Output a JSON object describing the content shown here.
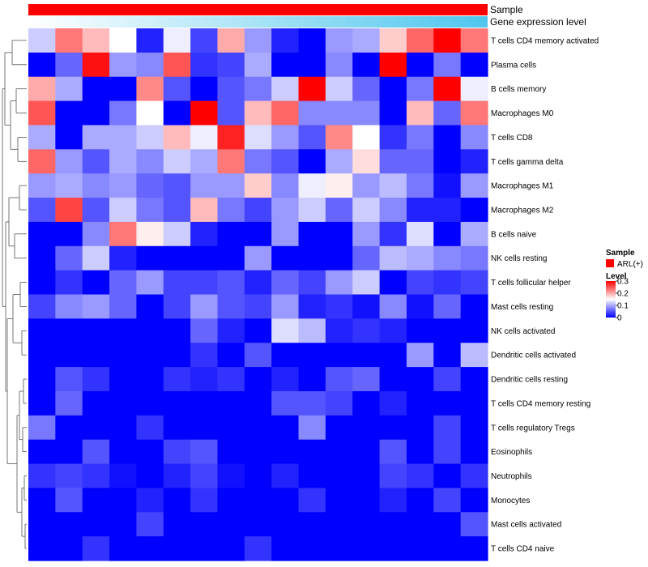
{
  "chart_data": {
    "type": "heatmap",
    "annotation_rows": [
      {
        "label": "Sample",
        "colors": [
          "#ff0000"
        ]
      },
      {
        "label": "Gene expression level",
        "colors": [
          "#ffffff",
          "#4fc6ee"
        ]
      }
    ],
    "rows": [
      "T cells CD4 memory activated",
      "Plasma cells",
      "B cells memory",
      "Macrophages M0",
      "T cells CD8",
      "T cells gamma delta",
      "Macrophages M1",
      "Macrophages M2",
      "B cells naive",
      "NK cells resting",
      "T cells follicular helper",
      "Mast cells resting",
      "NK cells activated",
      "Dendritic cells activated",
      "Dendritic cells resting",
      "T cells CD4 memory resting",
      "T cells regulatory  Tregs",
      "Eosinophils",
      "Neutrophils",
      "Monocytes",
      "Mast cells activated",
      "T cells CD4 naive"
    ],
    "values": [
      [
        0.12,
        0.23,
        0.19,
        0.15,
        0.02,
        0.14,
        0.04,
        0.2,
        0.09,
        0.02,
        0.0,
        0.09,
        0.1,
        0.18,
        0.24,
        0.3,
        0.23
      ],
      [
        0.0,
        0.06,
        0.29,
        0.09,
        0.08,
        0.25,
        0.03,
        0.04,
        0.1,
        0.0,
        0.0,
        0.08,
        0.0,
        0.3,
        0.0,
        0.07,
        0.0
      ],
      [
        0.2,
        0.1,
        0.0,
        0.0,
        0.22,
        0.05,
        0.0,
        0.05,
        0.07,
        0.12,
        0.3,
        0.12,
        0.06,
        0.0,
        0.07,
        0.3,
        0.14
      ],
      [
        0.25,
        0.0,
        0.0,
        0.07,
        0.15,
        0.0,
        0.3,
        0.05,
        0.19,
        0.24,
        0.08,
        0.08,
        0.08,
        0.0,
        0.19,
        0.06,
        0.23
      ],
      [
        0.1,
        0.0,
        0.1,
        0.1,
        0.12,
        0.19,
        0.14,
        0.28,
        0.13,
        0.09,
        0.05,
        0.22,
        0.15,
        0.03,
        0.07,
        0.0,
        0.08
      ],
      [
        0.24,
        0.09,
        0.05,
        0.1,
        0.08,
        0.12,
        0.1,
        0.23,
        0.07,
        0.05,
        0.0,
        0.1,
        0.17,
        0.06,
        0.06,
        0.0,
        0.02
      ],
      [
        0.09,
        0.1,
        0.08,
        0.09,
        0.06,
        0.05,
        0.09,
        0.09,
        0.18,
        0.08,
        0.14,
        0.16,
        0.09,
        0.11,
        0.07,
        0.01,
        0.09
      ],
      [
        0.05,
        0.26,
        0.05,
        0.12,
        0.07,
        0.05,
        0.19,
        0.07,
        0.04,
        0.09,
        0.12,
        0.06,
        0.12,
        0.08,
        0.02,
        0.02,
        0.0
      ],
      [
        0.0,
        0.0,
        0.08,
        0.23,
        0.16,
        0.12,
        0.02,
        0.0,
        0.0,
        0.09,
        0.0,
        0.0,
        0.09,
        0.03,
        0.13,
        0.0,
        0.1
      ],
      [
        0.0,
        0.06,
        0.12,
        0.02,
        0.0,
        0.0,
        0.0,
        0.0,
        0.09,
        0.0,
        0.0,
        0.0,
        0.06,
        0.11,
        0.1,
        0.08,
        0.07
      ],
      [
        0.0,
        0.03,
        0.0,
        0.06,
        0.09,
        0.04,
        0.04,
        0.05,
        0.02,
        0.06,
        0.04,
        0.09,
        0.12,
        0.0,
        0.04,
        0.03,
        0.04
      ],
      [
        0.04,
        0.08,
        0.09,
        0.06,
        0.0,
        0.04,
        0.09,
        0.05,
        0.04,
        0.09,
        0.02,
        0.03,
        0.01,
        0.08,
        0.01,
        0.06,
        0.0
      ],
      [
        0.0,
        0.0,
        0.0,
        0.0,
        0.0,
        0.0,
        0.06,
        0.02,
        0.0,
        0.13,
        0.11,
        0.02,
        0.03,
        0.02,
        0.0,
        0.0,
        0.0
      ],
      [
        0.0,
        0.0,
        0.0,
        0.0,
        0.0,
        0.0,
        0.03,
        0.0,
        0.05,
        0.0,
        0.0,
        0.0,
        0.0,
        0.0,
        0.09,
        0.0,
        0.11
      ],
      [
        0.0,
        0.05,
        0.03,
        0.0,
        0.0,
        0.03,
        0.02,
        0.03,
        0.0,
        0.02,
        0.0,
        0.05,
        0.06,
        0.0,
        0.0,
        0.04,
        0.0
      ],
      [
        0.0,
        0.06,
        0.0,
        0.0,
        0.0,
        0.0,
        0.0,
        0.0,
        0.0,
        0.05,
        0.05,
        0.04,
        0.0,
        0.02,
        0.0,
        0.0,
        0.0
      ],
      [
        0.07,
        0.0,
        0.0,
        0.0,
        0.03,
        0.0,
        0.0,
        0.0,
        0.0,
        0.0,
        0.08,
        0.0,
        0.0,
        0.0,
        0.0,
        0.04,
        0.0
      ],
      [
        0.0,
        0.0,
        0.05,
        0.0,
        0.0,
        0.04,
        0.05,
        0.0,
        0.0,
        0.0,
        0.0,
        0.0,
        0.0,
        0.05,
        0.0,
        0.04,
        0.0
      ],
      [
        0.03,
        0.04,
        0.03,
        0.01,
        0.0,
        0.02,
        0.04,
        0.01,
        0.0,
        0.02,
        0.0,
        0.0,
        0.0,
        0.04,
        0.03,
        0.0,
        0.03
      ],
      [
        0.0,
        0.05,
        0.0,
        0.0,
        0.02,
        0.0,
        0.03,
        0.0,
        0.0,
        0.0,
        0.03,
        0.0,
        0.0,
        0.02,
        0.0,
        0.04,
        0.0
      ],
      [
        0.0,
        0.0,
        0.0,
        0.0,
        0.04,
        0.0,
        0.0,
        0.0,
        0.0,
        0.0,
        0.0,
        0.0,
        0.0,
        0.0,
        0.0,
        0.0,
        0.05
      ],
      [
        0.0,
        0.0,
        0.03,
        0.0,
        0.0,
        0.0,
        0.0,
        0.0,
        0.03,
        0.0,
        0.0,
        0.0,
        0.0,
        0.0,
        0.0,
        0.0,
        0.0
      ]
    ],
    "color_scale": {
      "min": 0,
      "mid": 0.15,
      "max": 0.3,
      "low": "#0000ff",
      "mid_color": "#ffffff",
      "high": "#ff0000"
    },
    "row_dendrogram": true,
    "legend": {
      "position": "right",
      "sample_title": "Sample",
      "sample_entry": "ARL(+)",
      "sample_color": "#ff0000",
      "level_title": "Level",
      "level_ticks": [
        "0.3",
        "0.2",
        "0.1",
        "0"
      ],
      "level_tick_values": [
        0.3,
        0.2,
        0.1,
        0
      ]
    }
  }
}
